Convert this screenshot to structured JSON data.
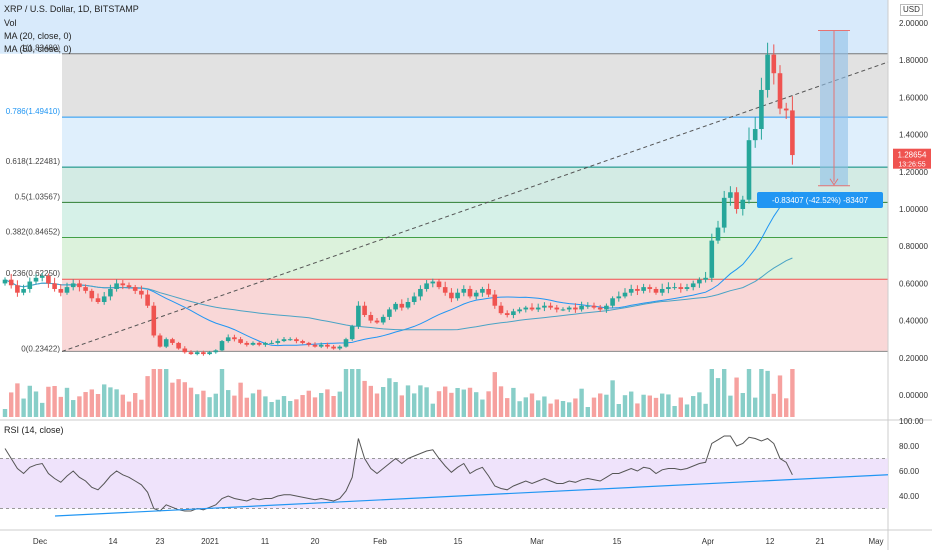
{
  "header": {
    "symbol_line": "XRP / U.S. Dollar, 1D, BITSTAMP",
    "vol_label": "Vol",
    "ma20_label": "MA (20, close, 0)",
    "ma50_label": "MA (50, close, 0)",
    "currency_badge": "USD",
    "rsi_label": "RSI (14, close)"
  },
  "price_badge": {
    "price": "1.28654",
    "countdown": "13:26:55",
    "color": "#ef5350"
  },
  "measure_label": "-0.83407 (-42.52%) -83407",
  "colors": {
    "up": "#26a69a",
    "down": "#ef5350",
    "ma20": "#2196f3",
    "rsi_line": "#555555",
    "rsi_band": "#ede0fb"
  },
  "chart_data": {
    "type": "candlestick",
    "x_tick_labels": [
      "Dec",
      "14",
      "23",
      "2021",
      "11",
      "20",
      "Feb",
      "15",
      "Mar",
      "15",
      "Apr",
      "12",
      "21",
      "May"
    ],
    "y_tick_labels": [
      "2.00000",
      "1.80000",
      "1.60000",
      "1.40000",
      "1.20000",
      "1.00000",
      "0.80000",
      "0.60000",
      "0.40000",
      "0.20000",
      "0.00000"
    ],
    "ylim": [
      0,
      2.0
    ],
    "fibonacci_levels": [
      {
        "label": "0(0.23422)",
        "value": 0.23422
      },
      {
        "label": "0.236(0.62250)",
        "value": 0.6225
      },
      {
        "label": "0.382(0.84652)",
        "value": 0.84652
      },
      {
        "label": "0.5(1.03567)",
        "value": 1.03567
      },
      {
        "label": "0.618(1.22481)",
        "value": 1.22481
      },
      {
        "label": "0.786(1.49410)",
        "value": 1.4941
      },
      {
        "label": "1(1.83480)",
        "value": 1.8348
      }
    ],
    "candles_close": [
      0.62,
      0.59,
      0.55,
      0.57,
      0.61,
      0.63,
      0.64,
      0.6,
      0.57,
      0.55,
      0.58,
      0.6,
      0.58,
      0.56,
      0.52,
      0.5,
      0.53,
      0.57,
      0.6,
      0.59,
      0.58,
      0.56,
      0.54,
      0.48,
      0.32,
      0.26,
      0.3,
      0.28,
      0.25,
      0.23,
      0.22,
      0.23,
      0.22,
      0.23,
      0.24,
      0.29,
      0.31,
      0.3,
      0.28,
      0.27,
      0.28,
      0.27,
      0.28,
      0.28,
      0.29,
      0.3,
      0.3,
      0.29,
      0.28,
      0.27,
      0.26,
      0.27,
      0.26,
      0.25,
      0.26,
      0.3,
      0.37,
      0.48,
      0.43,
      0.4,
      0.39,
      0.42,
      0.46,
      0.49,
      0.47,
      0.5,
      0.53,
      0.57,
      0.6,
      0.61,
      0.58,
      0.55,
      0.52,
      0.55,
      0.57,
      0.53,
      0.55,
      0.57,
      0.54,
      0.48,
      0.44,
      0.43,
      0.45,
      0.46,
      0.47,
      0.46,
      0.47,
      0.48,
      0.47,
      0.46,
      0.46,
      0.47,
      0.46,
      0.48,
      0.48,
      0.47,
      0.46,
      0.48,
      0.52,
      0.53,
      0.55,
      0.57,
      0.56,
      0.58,
      0.57,
      0.55,
      0.57,
      0.58,
      0.58,
      0.57,
      0.58,
      0.6,
      0.62,
      0.63,
      0.83,
      0.9,
      1.06,
      1.09,
      1.0,
      1.05,
      1.37,
      1.43,
      1.64,
      1.83,
      1.73,
      1.54,
      1.53,
      1.29
    ],
    "volume_shown": "bars",
    "ma20_shown": true,
    "ma50_shown": true,
    "rsi": {
      "y_tick_labels": [
        "100.00",
        "80.00",
        "60.00",
        "40.00"
      ],
      "ylim": [
        20,
        100
      ],
      "band": [
        30,
        70
      ],
      "values": [
        78,
        70,
        62,
        58,
        63,
        65,
        66,
        58,
        54,
        51,
        56,
        60,
        55,
        52,
        47,
        45,
        50,
        56,
        60,
        57,
        55,
        52,
        49,
        43,
        30,
        28,
        33,
        31,
        29,
        28,
        28,
        30,
        29,
        31,
        33,
        38,
        40,
        38,
        37,
        36,
        38,
        37,
        38,
        38,
        40,
        41,
        41,
        40,
        39,
        38,
        37,
        38,
        37,
        36,
        38,
        44,
        55,
        86,
        70,
        62,
        58,
        62,
        66,
        70,
        66,
        70,
        72,
        74,
        76,
        77,
        70,
        64,
        59,
        63,
        66,
        58,
        61,
        63,
        56,
        48,
        46,
        45,
        48,
        50,
        52,
        50,
        52,
        54,
        52,
        50,
        50,
        52,
        51,
        53,
        54,
        53,
        52,
        55,
        58,
        58,
        60,
        62,
        60,
        63,
        62,
        58,
        61,
        62,
        62,
        61,
        62,
        64,
        66,
        67,
        82,
        85,
        88,
        88,
        80,
        82,
        87,
        86,
        84,
        86,
        82,
        70,
        67,
        57
      ]
    }
  }
}
